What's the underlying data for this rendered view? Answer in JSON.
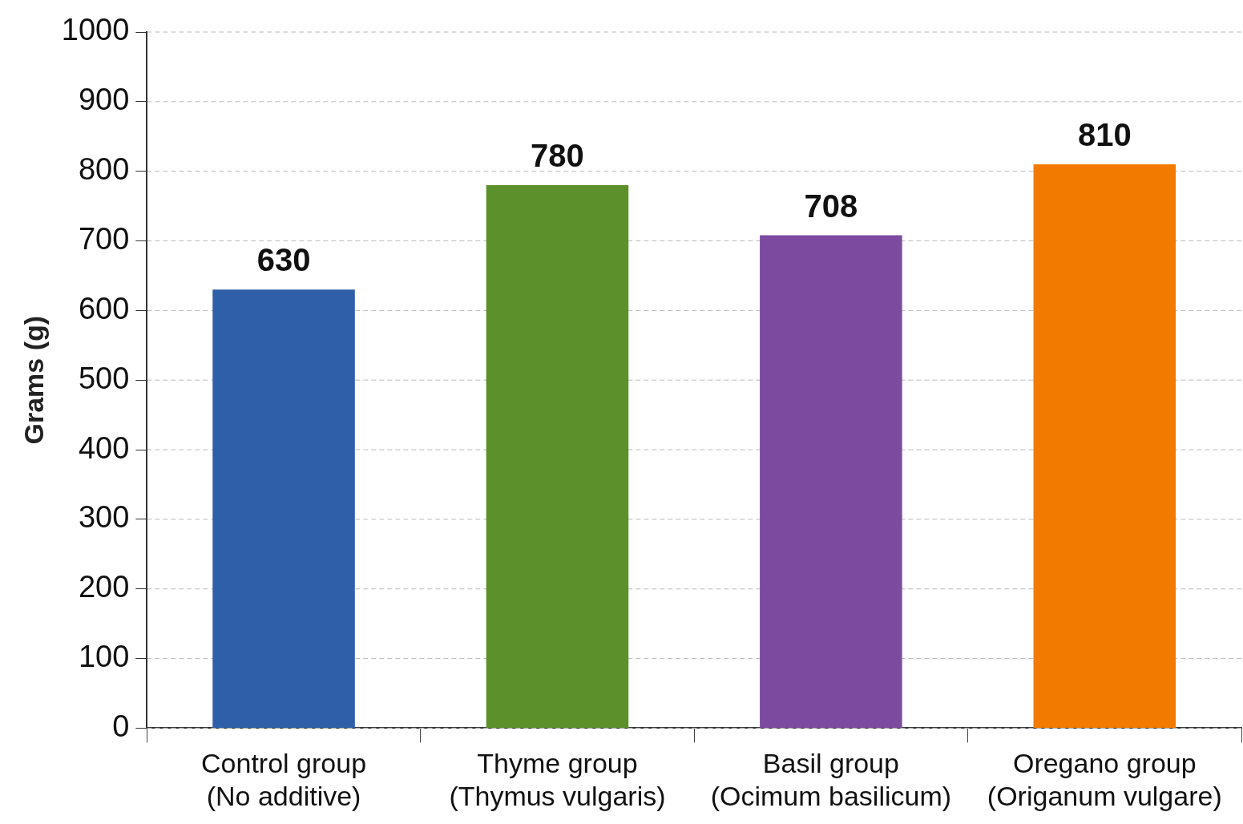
{
  "chart_data": {
    "type": "bar",
    "ylabel": "Grams (g)",
    "categories": [
      "Control group\n(No additive)",
      "Thyme group\n(Thymus vulgaris)",
      "Basil group\n(Ocimum basilicum)",
      "Oregano group\n(Origanum vulgare)"
    ],
    "values": [
      630,
      780,
      708,
      810
    ],
    "colors": [
      "#2f5fa8",
      "#5c902b",
      "#7c4a9e",
      "#f27a00"
    ],
    "ylim": [
      0,
      1000
    ],
    "yticks": [
      0,
      100,
      200,
      300,
      400,
      500,
      600,
      700,
      800,
      900,
      1000
    ],
    "grid": "y",
    "data_labels": true
  }
}
